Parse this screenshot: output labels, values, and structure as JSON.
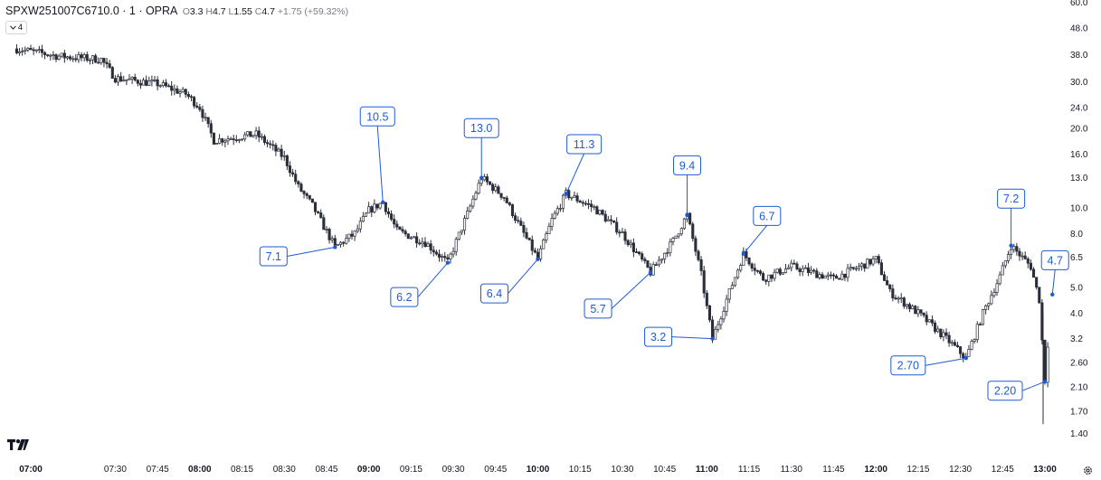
{
  "header": {
    "symbol": "SPXW251007C6710.0 · 1 · OPRA",
    "open_label": "O",
    "open": "3.3",
    "high_label": "H",
    "high": "4.7",
    "low_label": "L",
    "low": "1.55",
    "close_label": "C",
    "close": "4.7",
    "change": "+1.75 (+59.32%)"
  },
  "indicator_toggle": {
    "label": "4",
    "icon": "chevron-down-icon"
  },
  "brand": {
    "icon": "tradingview-logo-icon"
  },
  "settings": {
    "icon": "gear-icon"
  },
  "colors": {
    "candle": "#2a2e39",
    "annotation": "#1e5bd6",
    "axis_text": "#131722",
    "background": "#ffffff"
  },
  "chart_data": {
    "type": "candlestick",
    "scale": "log",
    "y_ticks": [
      "60.0",
      "48.0",
      "38.0",
      "30.0",
      "24.0",
      "20.0",
      "16.0",
      "13.0",
      "10.0",
      "8.0",
      "6.5",
      "5.0",
      "4.0",
      "3.2",
      "2.60",
      "2.10",
      "1.70",
      "1.40"
    ],
    "x_ticks": [
      {
        "label": "07:00",
        "bold": true
      },
      {
        "label": "07:30",
        "bold": false
      },
      {
        "label": "07:45",
        "bold": false
      },
      {
        "label": "08:00",
        "bold": true
      },
      {
        "label": "08:15",
        "bold": false
      },
      {
        "label": "08:30",
        "bold": false
      },
      {
        "label": "08:45",
        "bold": false
      },
      {
        "label": "09:00",
        "bold": true
      },
      {
        "label": "09:15",
        "bold": false
      },
      {
        "label": "09:30",
        "bold": false
      },
      {
        "label": "09:45",
        "bold": false
      },
      {
        "label": "10:00",
        "bold": true
      },
      {
        "label": "10:15",
        "bold": false
      },
      {
        "label": "10:30",
        "bold": false
      },
      {
        "label": "10:45",
        "bold": false
      },
      {
        "label": "11:00",
        "bold": true
      },
      {
        "label": "11:15",
        "bold": false
      },
      {
        "label": "11:30",
        "bold": false
      },
      {
        "label": "11:45",
        "bold": false
      },
      {
        "label": "12:00",
        "bold": true
      },
      {
        "label": "12:15",
        "bold": false
      },
      {
        "label": "12:30",
        "bold": false
      },
      {
        "label": "12:45",
        "bold": false
      },
      {
        "label": "13:00",
        "bold": true
      }
    ],
    "price_path": [
      [
        "06:55",
        40.0
      ],
      [
        "07:10",
        37.5
      ],
      [
        "07:25",
        36.5
      ],
      [
        "07:30",
        31.0
      ],
      [
        "07:45",
        29.5
      ],
      [
        "07:55",
        27.0
      ],
      [
        "08:00",
        24.0
      ],
      [
        "08:05",
        18.0
      ],
      [
        "08:20",
        19.0
      ],
      [
        "08:30",
        15.5
      ],
      [
        "08:35",
        12.0
      ],
      [
        "08:40",
        10.2
      ],
      [
        "08:48",
        7.1
      ],
      [
        "08:55",
        8.0
      ],
      [
        "09:00",
        9.8
      ],
      [
        "09:05",
        10.5
      ],
      [
        "09:10",
        8.2
      ],
      [
        "09:20",
        7.4
      ],
      [
        "09:28",
        6.2
      ],
      [
        "09:35",
        9.5
      ],
      [
        "09:40",
        13.0
      ],
      [
        "09:48",
        11.0
      ],
      [
        "09:55",
        8.0
      ],
      [
        "10:00",
        6.4
      ],
      [
        "10:05",
        9.0
      ],
      [
        "10:10",
        11.3
      ],
      [
        "10:20",
        10.0
      ],
      [
        "10:30",
        8.0
      ],
      [
        "10:40",
        5.7
      ],
      [
        "10:48",
        7.5
      ],
      [
        "10:53",
        9.4
      ],
      [
        "10:58",
        5.6
      ],
      [
        "11:00",
        4.2
      ],
      [
        "11:02",
        3.2
      ],
      [
        "11:07",
        4.5
      ],
      [
        "11:13",
        6.7
      ],
      [
        "11:20",
        5.4
      ],
      [
        "11:30",
        6.0
      ],
      [
        "11:45",
        5.4
      ],
      [
        "12:00",
        6.4
      ],
      [
        "12:05",
        4.8
      ],
      [
        "12:15",
        4.0
      ],
      [
        "12:25",
        3.2
      ],
      [
        "12:32",
        2.7
      ],
      [
        "12:38",
        4.0
      ],
      [
        "12:44",
        5.5
      ],
      [
        "12:48",
        7.2
      ],
      [
        "12:55",
        6.0
      ],
      [
        "12:58",
        4.5
      ],
      [
        "13:00",
        2.2
      ],
      [
        "13:01",
        3.0
      ],
      [
        "13:02",
        4.7
      ]
    ],
    "annotations": [
      {
        "label": "7.1",
        "time": "08:48",
        "value": 7.1
      },
      {
        "label": "10.5",
        "time": "09:05",
        "value": 10.5
      },
      {
        "label": "6.2",
        "time": "09:28",
        "value": 6.2
      },
      {
        "label": "13.0",
        "time": "09:40",
        "value": 13.0
      },
      {
        "label": "6.4",
        "time": "10:00",
        "value": 6.4
      },
      {
        "label": "11.3",
        "time": "10:10",
        "value": 11.3
      },
      {
        "label": "5.7",
        "time": "10:40",
        "value": 5.7
      },
      {
        "label": "9.4",
        "time": "10:53",
        "value": 9.4
      },
      {
        "label": "3.2",
        "time": "11:02",
        "value": 3.2
      },
      {
        "label": "6.7",
        "time": "11:13",
        "value": 6.7
      },
      {
        "label": "2.70",
        "time": "12:32",
        "value": 2.7
      },
      {
        "label": "7.2",
        "time": "12:48",
        "value": 7.2
      },
      {
        "label": "2.20",
        "time": "13:00",
        "value": 2.2
      },
      {
        "label": "4.7",
        "time": "13:02",
        "value": 4.7
      }
    ]
  }
}
